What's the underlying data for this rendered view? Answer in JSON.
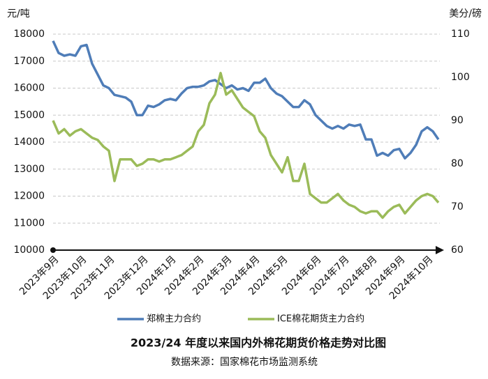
{
  "chart_data": {
    "type": "line",
    "title": "2023/24 年度以来国内外棉花期货价格走势对比图",
    "source": "数据来源：国家棉花市场监测系统",
    "y_unit": "元/吨",
    "y2_unit": "美分/磅",
    "categories": [
      "2023年9月",
      null,
      null,
      null,
      null,
      "2023年10月",
      null,
      null,
      null,
      null,
      "2023年11月",
      null,
      null,
      null,
      null,
      null,
      "2023年12月",
      null,
      null,
      null,
      null,
      "2024年1月",
      null,
      null,
      null,
      null,
      "2024年2月",
      null,
      null,
      null,
      null,
      "2024年3月",
      null,
      null,
      null,
      null,
      "2024年4月",
      null,
      null,
      null,
      null,
      "2024年5月",
      null,
      null,
      null,
      null,
      null,
      "2024年6月",
      null,
      null,
      null,
      null,
      "2024年7月",
      null,
      null,
      null,
      null,
      "2024年8月",
      null,
      null,
      null,
      null,
      "2024年9月",
      null,
      null,
      null,
      null,
      "2024年10月",
      null,
      null
    ],
    "series": [
      {
        "name": "郑棉主力合约",
        "color": "#4f7db8",
        "values": [
          17750,
          17300,
          17200,
          17250,
          17200,
          17550,
          17600,
          16900,
          16500,
          16100,
          16000,
          15750,
          15700,
          15650,
          15500,
          15000,
          15000,
          15350,
          15300,
          15400,
          15550,
          15600,
          15550,
          15800,
          16000,
          16050,
          16050,
          16100,
          16250,
          16300,
          16150,
          16000,
          16100,
          15950,
          16000,
          15900,
          16200,
          16200,
          16350,
          16000,
          15800,
          15700,
          15500,
          15300,
          15300,
          15550,
          15400,
          15000,
          14800,
          14600,
          14500,
          14600,
          14500,
          14650,
          14600,
          14650,
          14100,
          14100,
          13500,
          13600,
          13500,
          13700,
          13750,
          13400,
          13600,
          13900,
          14400,
          14550,
          14400,
          14100
        ]
      },
      {
        "name": "ICE棉花期货主力合约",
        "color": "#9bbb59",
        "axis": "y2",
        "values": [
          90,
          87,
          88,
          86.5,
          87.5,
          88,
          87,
          86,
          85.5,
          84,
          83,
          76,
          81,
          81,
          81,
          79.5,
          80,
          81,
          81,
          80.5,
          81,
          81,
          81.5,
          82,
          83,
          84,
          87.5,
          89,
          94,
          96,
          101,
          96,
          97,
          95,
          93,
          92,
          91,
          87.5,
          86,
          82,
          80,
          78,
          81.5,
          76,
          76,
          80,
          73,
          72,
          71,
          71,
          72,
          73,
          71.5,
          70.5,
          70,
          69,
          68.5,
          69,
          69,
          67.5,
          69,
          70,
          70.5,
          68.5,
          70,
          71.5,
          72.5,
          73,
          72.5,
          71
        ]
      }
    ],
    "ylim": [
      10000,
      18000
    ],
    "yticks": [
      10000,
      11000,
      12000,
      13000,
      14000,
      15000,
      16000,
      17000,
      18000
    ],
    "y2lim": [
      60,
      110
    ],
    "y2ticks": [
      60,
      70,
      80,
      90,
      100,
      110
    ],
    "grid": true
  }
}
